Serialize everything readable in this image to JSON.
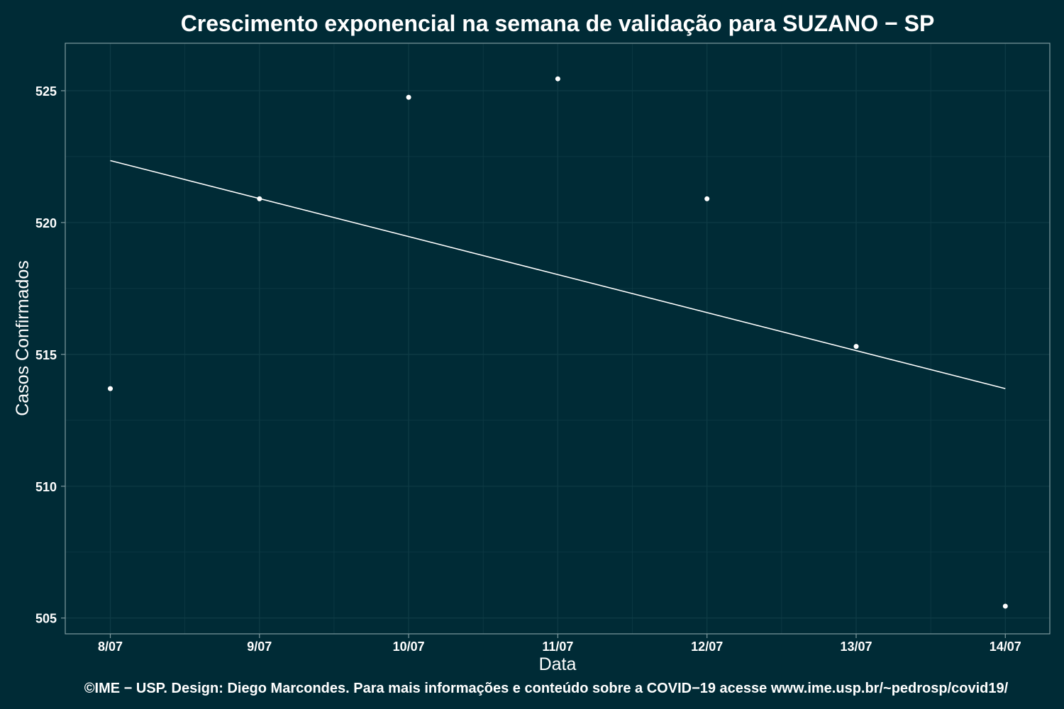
{
  "chart_data": {
    "type": "scatter",
    "title": "Crescimento exponencial na semana de validação para SUZANO − SP",
    "xlabel": "Data",
    "ylabel": "Casos Confirmados",
    "caption": "©IME − USP. Design: Diego Marcondes. Para mais informações e conteúdo sobre a COVID−19 acesse www.ime.usp.br/~pedrosp/covid19/",
    "categories": [
      "8/07",
      "9/07",
      "10/07",
      "11/07",
      "12/07",
      "13/07",
      "14/07"
    ],
    "points": [
      513.7,
      520.9,
      524.75,
      525.45,
      520.9,
      515.3,
      505.45
    ],
    "fit_line": {
      "start": 522.35,
      "end": 513.7
    },
    "y_ticks": [
      505,
      510,
      515,
      520,
      525
    ],
    "ylim": [
      504.4,
      526.8
    ],
    "grid": true,
    "colors": {
      "background": "#002b36",
      "grid": "#0e3b45",
      "axis": "#7f9a9f",
      "points": "#ffffff",
      "line": "#ffffff"
    }
  }
}
